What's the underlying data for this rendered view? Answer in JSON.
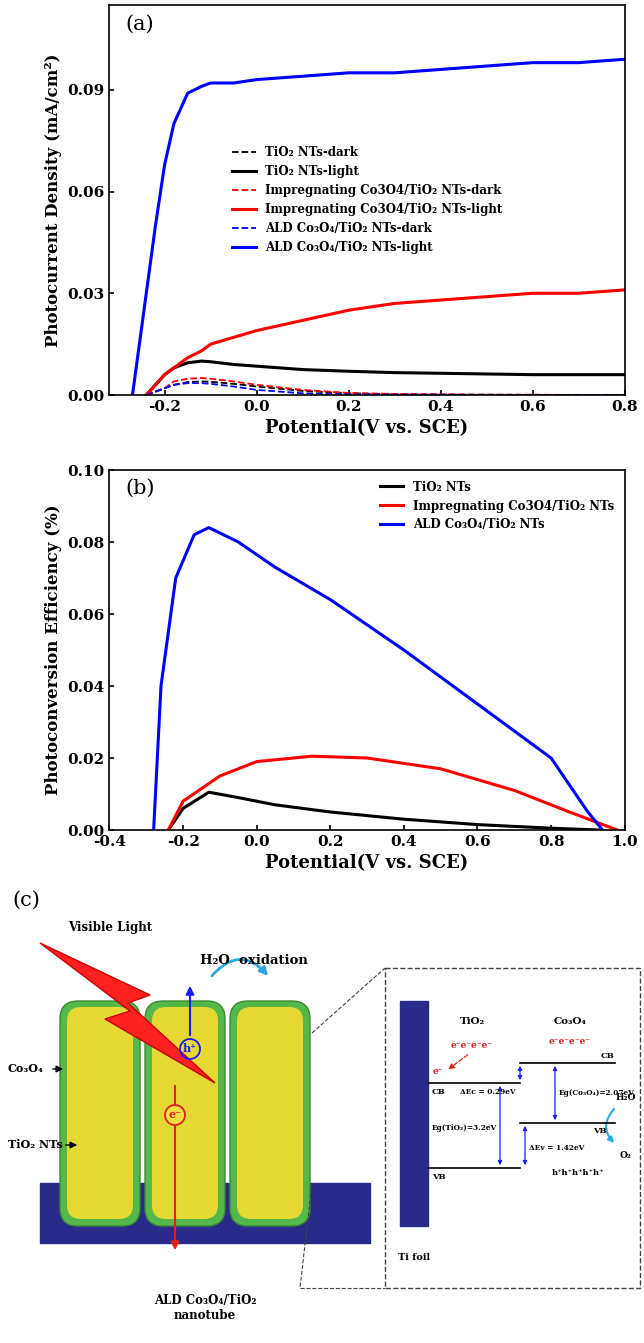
{
  "chart_data": [
    {
      "type": "line",
      "annotations": [
        "(a)"
      ],
      "x_label": "Potential(V vs. SCE)",
      "y_label": "Photocurrent Density (mA/cm²)",
      "x": [
        -0.27,
        -0.25,
        -0.24,
        -0.22,
        -0.2,
        -0.18,
        -0.15,
        -0.12,
        -0.1,
        -0.05,
        0.0,
        0.1,
        0.2,
        0.3,
        0.4,
        0.5,
        0.6,
        0.7,
        0.8
      ],
      "xlim": [
        -0.32,
        0.8
      ],
      "xticks": [
        -0.2,
        0.0,
        0.2,
        0.4,
        0.6,
        0.8
      ],
      "ylim": [
        0,
        0.115
      ],
      "yticks": [
        {
          "value": 0,
          "label": "0.00"
        },
        0.03,
        0.06,
        0.09
      ],
      "legend": "center",
      "series": [
        {
          "name": "TiO₂ NTs-dark",
          "color": "#000000",
          "line_style": "dashed",
          "values": [
            null,
            null,
            0,
            0.001,
            0.002,
            0.003,
            0.0038,
            0.004,
            0.0039,
            0.0033,
            0.0025,
            0.0012,
            0.0005,
            0.0002,
            0.0001,
            0.0001,
            0,
            0,
            0
          ]
        },
        {
          "name": "TiO₂ NTs-light",
          "color": "#000000",
          "line_style": "solid",
          "values": [
            null,
            null,
            0,
            0.003,
            0.006,
            0.008,
            0.0095,
            0.01,
            0.0098,
            0.009,
            0.0085,
            0.0075,
            0.007,
            0.0066,
            0.0064,
            0.0062,
            0.006,
            0.006,
            0.006
          ]
        },
        {
          "name": "Impregnating Co3O4/TiO₂ NTs-dark",
          "color": "#ff0000",
          "line_style": "dashed",
          "values": [
            null,
            null,
            0,
            0.001,
            0.002,
            0.004,
            0.0048,
            0.005,
            0.0048,
            0.004,
            0.003,
            0.0015,
            0.0006,
            0.0003,
            0.0002,
            0.0001,
            0.0001,
            0,
            0
          ]
        },
        {
          "name": "Impregnating Co3O4/TiO₂ NTs-light",
          "color": "#ff0000",
          "line_style": "solid",
          "values": [
            null,
            null,
            0,
            0.003,
            0.006,
            0.008,
            0.011,
            0.013,
            0.015,
            0.017,
            0.019,
            0.022,
            0.025,
            0.027,
            0.028,
            0.029,
            0.03,
            0.03,
            0.031
          ]
        },
        {
          "name": "ALD Co₃O₄/TiO₂ NTs-dark",
          "color": "#0000ff",
          "line_style": "dashed",
          "values": [
            null,
            null,
            0,
            0.001,
            0.002,
            0.003,
            0.0035,
            0.0035,
            0.0033,
            0.0025,
            0.0015,
            0.0005,
            0.0002,
            0.0001,
            0.0001,
            0,
            0,
            0,
            0
          ]
        },
        {
          "name": "ALD Co₃O₄/TiO₂ NTs-light",
          "color": "#0000ff",
          "line_style": "solid",
          "values": [
            0,
            0.02,
            0.03,
            0.05,
            0.068,
            0.08,
            0.089,
            0.091,
            0.092,
            0.092,
            0.093,
            0.094,
            0.095,
            0.095,
            0.096,
            0.097,
            0.098,
            0.098,
            0.099
          ]
        }
      ]
    },
    {
      "type": "line",
      "annotations": [
        "(b)"
      ],
      "x_label": "Potential(V vs. SCE)",
      "y_label": "Photoconversion Efficiency (%)",
      "xlim": [
        -0.4,
        1.0
      ],
      "xticks": [
        -0.4,
        -0.2,
        0.0,
        0.2,
        0.4,
        0.6,
        0.8,
        1.0
      ],
      "ylim": [
        0,
        0.1
      ],
      "yticks": [
        {
          "value": 0,
          "label": "0.00"
        },
        0.02,
        0.04,
        0.06,
        0.08,
        {
          "value": 0.1,
          "label": "0.10"
        }
      ],
      "legend": "upper right",
      "series": [
        {
          "name": "TiO₂ NTs",
          "color": "#000000",
          "line_style": "solid",
          "x": [
            -0.24,
            -0.2,
            -0.13,
            -0.05,
            0.05,
            0.2,
            0.4,
            0.6,
            0.8,
            0.93
          ],
          "values": [
            0,
            0.006,
            0.0105,
            0.009,
            0.007,
            0.005,
            0.003,
            0.0015,
            0.0005,
            0
          ]
        },
        {
          "name": "Impregnating Co3O4/TiO₂ NTs",
          "color": "#ff0000",
          "line_style": "solid",
          "x": [
            -0.24,
            -0.2,
            -0.1,
            0.0,
            0.15,
            0.3,
            0.5,
            0.7,
            0.85,
            0.98
          ],
          "values": [
            0,
            0.008,
            0.015,
            0.019,
            0.0205,
            0.02,
            0.017,
            0.011,
            0.005,
            0
          ]
        },
        {
          "name": "ALD Co₃O₄/TiO₂ NTs",
          "color": "#0000ff",
          "line_style": "solid",
          "x": [
            -0.28,
            -0.26,
            -0.22,
            -0.17,
            -0.13,
            -0.05,
            0.05,
            0.2,
            0.4,
            0.6,
            0.8,
            0.9,
            0.94
          ],
          "values": [
            0,
            0.04,
            0.07,
            0.082,
            0.084,
            0.08,
            0.073,
            0.064,
            0.05,
            0.035,
            0.02,
            0.005,
            0
          ]
        }
      ]
    }
  ],
  "diagram": {
    "label": "(c)",
    "light": "Visible Light",
    "reaction": "H₂O  oxidation",
    "shell": "Co₃O₄",
    "core": "TiO₂ NTs",
    "hole": "h⁺",
    "electron": "e⁻",
    "caption": "ALD Co₃O₄/TiO₂\nnanotube",
    "band_diagram": {
      "substrate": "Ti foil",
      "injected_electron": "e⁻",
      "conduction_offset": "ΔEc = 0.29eV",
      "valence_offset": "ΔEv = 1.42eV",
      "reactant": "H₂O",
      "product": "O₂",
      "semiconductor_1": {
        "name": "TiO₂",
        "electrons": "e⁻e⁻e⁻e⁻",
        "cb": "CB",
        "vb": "VB",
        "gap": "Eg(TiO₂)=3.2eV"
      },
      "semiconductor_2": {
        "name": "Co₃O₄",
        "electrons": "e⁻e⁻e⁻e⁻",
        "cb": "CB",
        "vb": "VB",
        "gap": "Eg(Co₃O₄)=2.07eV",
        "holes": "h⁺h⁺h⁺h⁺h⁺"
      }
    }
  }
}
